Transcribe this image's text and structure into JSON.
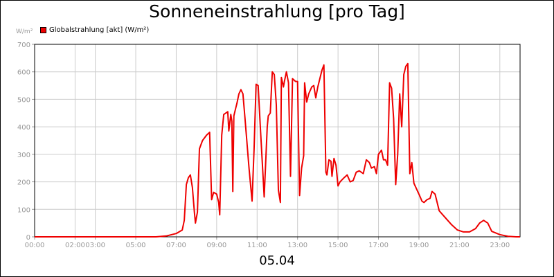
{
  "chart_data": {
    "type": "line",
    "title": "Sonneneinstrahlung [pro Tag]",
    "xlabel": "05.04",
    "ylabel": "W/m²",
    "ylim": [
      0,
      700
    ],
    "yticks": [
      0,
      100,
      200,
      300,
      400,
      500,
      600,
      700
    ],
    "xlim": [
      0,
      24
    ],
    "xticks": [
      {
        "v": 0,
        "label": "00:00"
      },
      {
        "v": 2,
        "label": "02:00"
      },
      {
        "v": 3,
        "label": "03:00"
      },
      {
        "v": 5,
        "label": "05:00"
      },
      {
        "v": 7,
        "label": "07:00"
      },
      {
        "v": 9,
        "label": "09:00"
      },
      {
        "v": 11,
        "label": "11:00"
      },
      {
        "v": 13,
        "label": "13:00"
      },
      {
        "v": 15,
        "label": "15:00"
      },
      {
        "v": 17,
        "label": "17:00"
      },
      {
        "v": 19,
        "label": "19:00"
      },
      {
        "v": 21,
        "label": "21:00"
      },
      {
        "v": 23,
        "label": "23:00"
      }
    ],
    "grid": true,
    "legend_position": "top-left",
    "colors": {
      "series": "#ee0000",
      "grid": "#cccccc",
      "tick_text": "#999999"
    },
    "series": [
      {
        "name": "Globalstrahlung [akt] (W/m²)",
        "points": [
          [
            0,
            0
          ],
          [
            6.0,
            0
          ],
          [
            6.5,
            3
          ],
          [
            7.0,
            12
          ],
          [
            7.3,
            25
          ],
          [
            7.4,
            60
          ],
          [
            7.5,
            190
          ],
          [
            7.6,
            215
          ],
          [
            7.7,
            225
          ],
          [
            7.8,
            180
          ],
          [
            7.9,
            90
          ],
          [
            7.95,
            50
          ],
          [
            8.05,
            90
          ],
          [
            8.15,
            320
          ],
          [
            8.3,
            350
          ],
          [
            8.5,
            370
          ],
          [
            8.65,
            380
          ],
          [
            8.75,
            135
          ],
          [
            8.85,
            162
          ],
          [
            9.0,
            155
          ],
          [
            9.1,
            125
          ],
          [
            9.15,
            80
          ],
          [
            9.25,
            370
          ],
          [
            9.35,
            445
          ],
          [
            9.55,
            455
          ],
          [
            9.6,
            385
          ],
          [
            9.7,
            445
          ],
          [
            9.75,
            420
          ],
          [
            9.8,
            165
          ],
          [
            9.85,
            440
          ],
          [
            9.95,
            470
          ],
          [
            10.0,
            485
          ],
          [
            10.1,
            520
          ],
          [
            10.2,
            535
          ],
          [
            10.3,
            520
          ],
          [
            10.4,
            430
          ],
          [
            10.6,
            250
          ],
          [
            10.75,
            130
          ],
          [
            10.85,
            320
          ],
          [
            10.95,
            555
          ],
          [
            11.05,
            550
          ],
          [
            11.15,
            410
          ],
          [
            11.35,
            145
          ],
          [
            11.5,
            400
          ],
          [
            11.55,
            440
          ],
          [
            11.65,
            450
          ],
          [
            11.75,
            600
          ],
          [
            11.85,
            590
          ],
          [
            11.95,
            480
          ],
          [
            12.05,
            170
          ],
          [
            12.15,
            125
          ],
          [
            12.2,
            580
          ],
          [
            12.3,
            545
          ],
          [
            12.35,
            565
          ],
          [
            12.45,
            600
          ],
          [
            12.55,
            560
          ],
          [
            12.65,
            220
          ],
          [
            12.75,
            575
          ],
          [
            12.9,
            565
          ],
          [
            13.0,
            565
          ],
          [
            13.1,
            150
          ],
          [
            13.2,
            250
          ],
          [
            13.3,
            295
          ],
          [
            13.35,
            560
          ],
          [
            13.45,
            490
          ],
          [
            13.55,
            520
          ],
          [
            13.7,
            545
          ],
          [
            13.8,
            550
          ],
          [
            13.9,
            505
          ],
          [
            14.0,
            545
          ],
          [
            14.2,
            605
          ],
          [
            14.3,
            625
          ],
          [
            14.4,
            235
          ],
          [
            14.45,
            225
          ],
          [
            14.55,
            280
          ],
          [
            14.65,
            275
          ],
          [
            14.7,
            220
          ],
          [
            14.8,
            285
          ],
          [
            14.9,
            260
          ],
          [
            15.0,
            185
          ],
          [
            15.1,
            200
          ],
          [
            15.3,
            215
          ],
          [
            15.45,
            225
          ],
          [
            15.6,
            200
          ],
          [
            15.75,
            205
          ],
          [
            15.9,
            235
          ],
          [
            16.05,
            240
          ],
          [
            16.25,
            230
          ],
          [
            16.4,
            280
          ],
          [
            16.55,
            270
          ],
          [
            16.65,
            250
          ],
          [
            16.8,
            255
          ],
          [
            16.9,
            230
          ],
          [
            17.0,
            300
          ],
          [
            17.15,
            315
          ],
          [
            17.25,
            280
          ],
          [
            17.35,
            280
          ],
          [
            17.45,
            260
          ],
          [
            17.55,
            560
          ],
          [
            17.65,
            540
          ],
          [
            17.75,
            430
          ],
          [
            17.85,
            190
          ],
          [
            17.95,
            300
          ],
          [
            18.05,
            520
          ],
          [
            18.15,
            400
          ],
          [
            18.25,
            590
          ],
          [
            18.35,
            620
          ],
          [
            18.45,
            630
          ],
          [
            18.55,
            230
          ],
          [
            18.65,
            270
          ],
          [
            18.75,
            195
          ],
          [
            19.0,
            155
          ],
          [
            19.15,
            130
          ],
          [
            19.25,
            125
          ],
          [
            19.4,
            135
          ],
          [
            19.55,
            140
          ],
          [
            19.65,
            165
          ],
          [
            19.8,
            155
          ],
          [
            20.0,
            95
          ],
          [
            20.3,
            70
          ],
          [
            20.6,
            45
          ],
          [
            20.9,
            25
          ],
          [
            21.2,
            18
          ],
          [
            21.5,
            18
          ],
          [
            21.8,
            30
          ],
          [
            22.0,
            50
          ],
          [
            22.2,
            60
          ],
          [
            22.4,
            50
          ],
          [
            22.6,
            20
          ],
          [
            23.0,
            8
          ],
          [
            23.4,
            2
          ],
          [
            23.8,
            0
          ],
          [
            24,
            0
          ]
        ]
      }
    ]
  }
}
